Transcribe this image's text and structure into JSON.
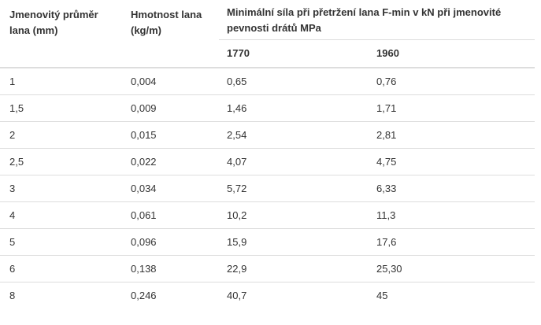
{
  "table": {
    "headers": {
      "diameter": "Jmenovitý průměr lana (mm)",
      "weight": "Hmotnost lana (kg/m)",
      "force_group": "Minimální síla při přetržení lana F-min v kN při jmenovité pevnosti drátů MPa",
      "strength_1770": "1770",
      "strength_1960": "1960"
    },
    "rows": [
      {
        "diameter": "1",
        "weight": "0,004",
        "f1770": "0,65",
        "f1960": "0,76"
      },
      {
        "diameter": "1,5",
        "weight": "0,009",
        "f1770": "1,46",
        "f1960": "1,71"
      },
      {
        "diameter": "2",
        "weight": "0,015",
        "f1770": "2,54",
        "f1960": "2,81"
      },
      {
        "diameter": "2,5",
        "weight": "0,022",
        "f1770": "4,07",
        "f1960": "4,75"
      },
      {
        "diameter": "3",
        "weight": "0,034",
        "f1770": "5,72",
        "f1960": "6,33"
      },
      {
        "diameter": "4",
        "weight": "0,061",
        "f1770": "10,2",
        "f1960": "11,3"
      },
      {
        "diameter": "5",
        "weight": "0,096",
        "f1770": "15,9",
        "f1960": "17,6"
      },
      {
        "diameter": "6",
        "weight": "0,138",
        "f1770": "22,9",
        "f1960": "25,30"
      },
      {
        "diameter": "8",
        "weight": "0,246",
        "f1770": "40,7",
        "f1960": "45"
      }
    ]
  }
}
